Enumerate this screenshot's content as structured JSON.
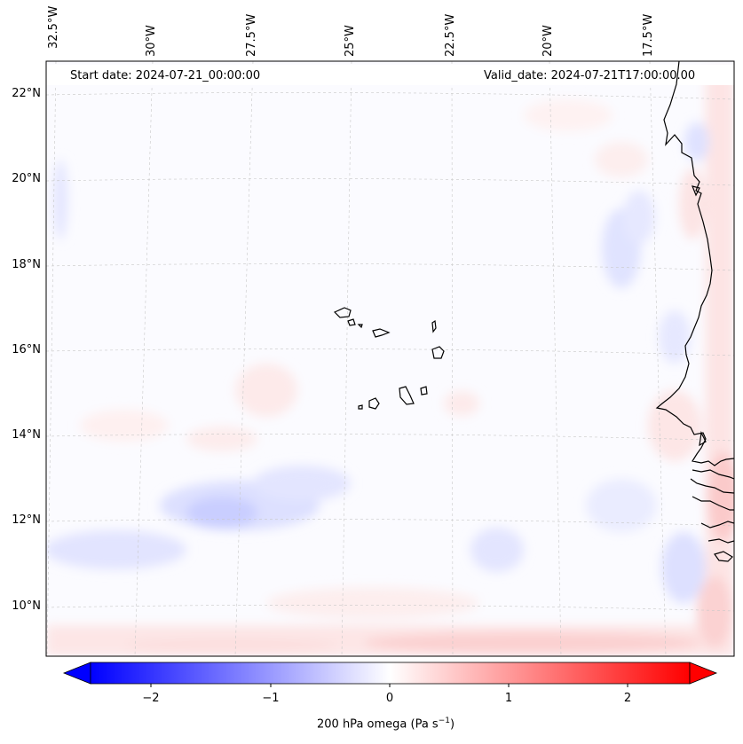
{
  "map": {
    "start_date": "Start date: 2024-07-21_00:00:00",
    "valid_date": "Valid_date: 2024-07-21T17:00:00.00",
    "lon_labels": [
      "32.5°W",
      "30°W",
      "27.5°W",
      "25°W",
      "22.5°W",
      "20°W",
      "17.5°W"
    ],
    "lat_labels": [
      "22°N",
      "20°N",
      "18°N",
      "16°N",
      "14°N",
      "12°N",
      "10°N"
    ],
    "islands": "Cape Verde",
    "coast": "West Africa"
  },
  "colorbar": {
    "label_main": "200 hPa omega (Pa s",
    "label_sup": "−1",
    "label_end": ")",
    "ticks": [
      "−2",
      "−1",
      "0",
      "1",
      "2"
    ],
    "vmin": -2.5,
    "vmax": 2.5,
    "color_neg": "#0000ff",
    "color_zero": "#ffffff",
    "color_pos": "#ff0000"
  }
}
